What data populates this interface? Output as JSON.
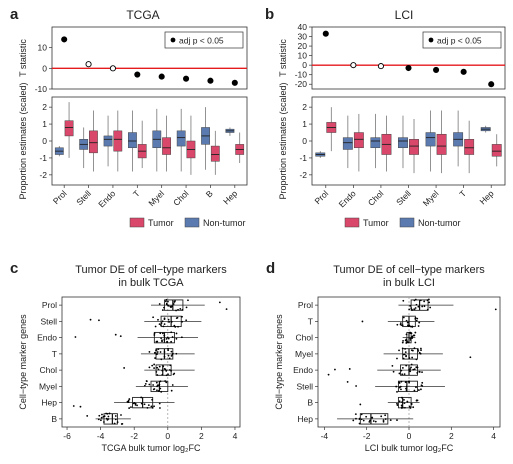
{
  "colors": {
    "tumor": "#d9476a",
    "nontumor": "#5b7bb0",
    "red_line": "#e41a1c",
    "panel_border": "#333333",
    "box_fill": "#ffffff"
  },
  "legend_items": {
    "tumor": "Tumor",
    "nontumor": "Non-tumor"
  },
  "chart_data": [
    {
      "id": "a",
      "type": "scatter",
      "panel_letter": "a",
      "title": "TCGA",
      "ylabel": "T statistic",
      "ylim": [
        -10,
        20
      ],
      "yticks": [
        -10,
        0,
        10
      ],
      "categories": [
        "Prol",
        "Stell",
        "Endo",
        "T",
        "Myel",
        "Chol",
        "B",
        "Hep"
      ],
      "values": [
        14,
        2,
        0,
        -3,
        -4,
        -5,
        -6,
        -7
      ],
      "significant": [
        true,
        false,
        false,
        true,
        true,
        true,
        true,
        true
      ],
      "legend": {
        "marker": "filled",
        "label": "adj p < 0.05"
      }
    },
    {
      "id": "a2",
      "type": "box",
      "ylabel": "Proportion estimates (scaled)",
      "ylim": [
        -2.6,
        2.6
      ],
      "yticks": [
        -2,
        -1,
        0,
        1,
        2
      ],
      "categories": [
        "Prol",
        "Stell",
        "Endo",
        "T",
        "Myel",
        "Chol",
        "B",
        "Hep"
      ],
      "series": [
        {
          "name": "Non-tumor",
          "boxes": [
            [
              -0.9,
              -0.8,
              -0.6,
              -0.4,
              -0.3
            ],
            [
              -1.6,
              -0.5,
              -0.2,
              0.1,
              0.8
            ],
            [
              -1.5,
              -0.3,
              0.1,
              0.3,
              1.5
            ],
            [
              -1.8,
              -0.4,
              0.0,
              0.5,
              1.8
            ],
            [
              -1.8,
              -0.4,
              0.1,
              0.6,
              1.9
            ],
            [
              -1.8,
              -0.3,
              0.2,
              0.6,
              1.9
            ],
            [
              -1.7,
              -0.2,
              0.3,
              0.8,
              2.0
            ],
            [
              0.3,
              0.5,
              0.6,
              0.7,
              0.8
            ]
          ]
        },
        {
          "name": "Tumor",
          "boxes": [
            [
              -1.0,
              0.3,
              0.8,
              1.2,
              2.3
            ],
            [
              -1.8,
              -0.7,
              -0.1,
              0.6,
              1.8
            ],
            [
              -1.8,
              -0.6,
              0.1,
              0.6,
              1.8
            ],
            [
              -1.6,
              -1.0,
              -0.6,
              -0.2,
              1.2
            ],
            [
              -1.8,
              -0.8,
              -0.4,
              0.2,
              1.5
            ],
            [
              -2.0,
              -1.0,
              -0.5,
              0.0,
              1.5
            ],
            [
              -2.0,
              -1.2,
              -0.8,
              -0.3,
              0.6
            ],
            [
              -1.3,
              -0.8,
              -0.5,
              -0.2,
              0.5
            ]
          ]
        }
      ]
    },
    {
      "id": "b",
      "type": "scatter",
      "panel_letter": "b",
      "title": "LCI",
      "ylabel": "T statistic",
      "ylim": [
        -25,
        40
      ],
      "yticks": [
        -20,
        -10,
        0,
        10,
        20,
        30,
        40
      ],
      "categories": [
        "Prol",
        "Endo",
        "Chol",
        "Stell",
        "Myel",
        "T",
        "Hep"
      ],
      "values": [
        33,
        0,
        -1,
        -3,
        -5,
        -7,
        -20
      ],
      "significant": [
        true,
        false,
        false,
        true,
        true,
        true,
        true
      ],
      "legend": {
        "marker": "filled",
        "label": "adj p < 0.05"
      }
    },
    {
      "id": "b2",
      "type": "box",
      "ylabel": "Proportion estimates (scaled)",
      "ylim": [
        -2.6,
        2.6
      ],
      "yticks": [
        -2,
        -1,
        0,
        1,
        2
      ],
      "categories": [
        "Prol",
        "Endo",
        "Chol",
        "Stell",
        "Myel",
        "T",
        "Hep"
      ],
      "series": [
        {
          "name": "Non-tumor",
          "boxes": [
            [
              -1.0,
              -0.9,
              -0.8,
              -0.7,
              -0.6
            ],
            [
              -1.6,
              -0.5,
              -0.1,
              0.2,
              1.5
            ],
            [
              -1.6,
              -0.4,
              0.0,
              0.2,
              1.6
            ],
            [
              -1.6,
              -0.4,
              0.0,
              0.2,
              1.5
            ],
            [
              -1.8,
              -0.3,
              0.2,
              0.5,
              1.8
            ],
            [
              -1.5,
              -0.3,
              0.1,
              0.5,
              1.8
            ],
            [
              0.5,
              0.6,
              0.7,
              0.8,
              0.9
            ]
          ]
        },
        {
          "name": "Tumor",
          "boxes": [
            [
              -0.6,
              0.5,
              0.8,
              1.1,
              2.0
            ],
            [
              -1.8,
              -0.4,
              0.1,
              0.5,
              1.6
            ],
            [
              -1.8,
              -0.8,
              -0.2,
              0.4,
              1.5
            ],
            [
              -1.9,
              -0.8,
              -0.3,
              0.1,
              1.3
            ],
            [
              -1.9,
              -0.8,
              -0.3,
              0.4,
              1.8
            ],
            [
              -1.9,
              -0.8,
              -0.4,
              0.1,
              1.2
            ],
            [
              -1.5,
              -0.9,
              -0.6,
              -0.2,
              0.4
            ]
          ]
        }
      ]
    },
    {
      "id": "c",
      "type": "box",
      "orientation": "horizontal",
      "panel_letter": "c",
      "title": "Tumor DE of cell−type markers",
      "subtitle": "in bulk TCGA",
      "ylabel": "Cell−type marker genes",
      "xlabel": "TCGA bulk tumor log₂FC",
      "xlim": [
        -6.3,
        4.3
      ],
      "xticks": [
        -6,
        -4,
        -2,
        0,
        2,
        4
      ],
      "categories": [
        "Prol",
        "Stell",
        "Endo",
        "T",
        "Chol",
        "Myel",
        "Hep",
        "B"
      ],
      "boxes": [
        [
          -1.0,
          -0.2,
          0.3,
          0.9,
          2.2
        ],
        [
          -1.4,
          -0.4,
          0.2,
          0.8,
          2.0
        ],
        [
          -1.8,
          -0.8,
          -0.2,
          0.4,
          1.8
        ],
        [
          -1.6,
          -0.7,
          -0.2,
          0.3,
          1.6
        ],
        [
          -1.4,
          -0.7,
          -0.3,
          0.2,
          1.6
        ],
        [
          -1.9,
          -1.0,
          -0.5,
          0.0,
          1.2
        ],
        [
          -3.2,
          -2.1,
          -1.5,
          -0.9,
          0.4
        ],
        [
          -4.3,
          -3.8,
          -3.3,
          -3.0,
          -2.2
        ]
      ],
      "outliers": [
        [
          [
            3.1,
            3.5
          ]
        ],
        [
          [
            -4.1,
            -4.6
          ]
        ],
        [
          [
            -5.5,
            -3.1,
            -2.8
          ]
        ],
        [],
        [
          [
            -2.6
          ]
        ],
        [],
        [
          [
            -5.2,
            -5.6
          ]
        ],
        [
          [
            -4.8
          ]
        ]
      ]
    },
    {
      "id": "d",
      "type": "box",
      "orientation": "horizontal",
      "panel_letter": "d",
      "title": "Tumor DE of cell−type markers",
      "subtitle": "in bulk LCI",
      "ylabel": "Cell−type marker genes",
      "xlabel": "LCI bulk tumor log₂FC",
      "xlim": [
        -4.3,
        4.3
      ],
      "xticks": [
        -4,
        -2,
        0,
        2,
        4
      ],
      "categories": [
        "Prol",
        "T",
        "Chol",
        "Myel",
        "Endo",
        "Stell",
        "B",
        "Hep"
      ],
      "boxes": [
        [
          -0.5,
          0.1,
          0.5,
          0.9,
          2.1
        ],
        [
          -1.0,
          -0.3,
          0.0,
          0.3,
          1.2
        ],
        [
          -0.3,
          -0.1,
          0.0,
          0.1,
          0.3
        ],
        [
          -1.2,
          -0.3,
          0.0,
          0.4,
          1.6
        ],
        [
          -1.5,
          -0.4,
          0.0,
          0.4,
          1.5
        ],
        [
          -1.6,
          -0.5,
          -0.1,
          0.4,
          1.7
        ],
        [
          -1.0,
          -0.5,
          -0.3,
          0.1,
          0.5
        ],
        [
          -3.4,
          -2.3,
          -1.8,
          -1.0,
          0.2
        ]
      ],
      "outliers": [
        [
          [
            4.1
          ]
        ],
        [
          [
            -2.2
          ]
        ],
        [],
        [
          [
            2.9
          ]
        ],
        [
          [
            -3.5,
            -3.8,
            -2.8
          ]
        ],
        [
          [
            -2.9,
            -2.5
          ]
        ],
        [
          [
            -2.3
          ]
        ],
        []
      ]
    }
  ]
}
